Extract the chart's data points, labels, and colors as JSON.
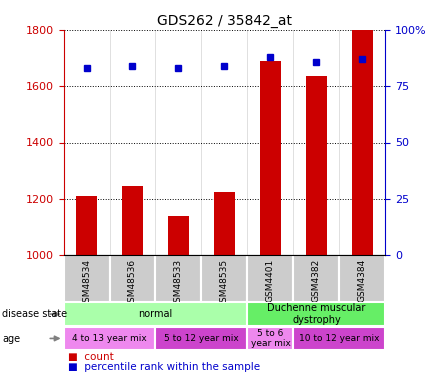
{
  "title": "GDS262 / 35842_at",
  "samples": [
    "GSM48534",
    "GSM48536",
    "GSM48533",
    "GSM48535",
    "GSM4401",
    "GSM4382",
    "GSM4384"
  ],
  "counts": [
    1210,
    1245,
    1140,
    1225,
    1690,
    1635,
    1800
  ],
  "percentiles": [
    83,
    84,
    83,
    84,
    88,
    86,
    87
  ],
  "ylim_left": [
    1000,
    1800
  ],
  "ylim_right": [
    0,
    100
  ],
  "yticks_left": [
    1000,
    1200,
    1400,
    1600,
    1800
  ],
  "yticks_right": [
    0,
    25,
    50,
    75,
    100
  ],
  "bar_color": "#cc0000",
  "dot_color": "#0000cc",
  "disease_state_groups": [
    {
      "label": "normal",
      "start": 0,
      "end": 4,
      "color": "#aaffaa"
    },
    {
      "label": "Duchenne muscular\ndystrophy",
      "start": 4,
      "end": 7,
      "color": "#66ee66"
    }
  ],
  "age_groups": [
    {
      "label": "4 to 13 year mix",
      "start": 0,
      "end": 2,
      "color": "#ee88ee"
    },
    {
      "label": "5 to 12 year mix",
      "start": 2,
      "end": 4,
      "color": "#cc44cc"
    },
    {
      "label": "5 to 6\nyear mix",
      "start": 4,
      "end": 5,
      "color": "#ee88ee"
    },
    {
      "label": "10 to 12 year mix",
      "start": 5,
      "end": 7,
      "color": "#cc44cc"
    }
  ],
  "left_label_color": "#cc0000",
  "right_label_color": "#0000cc",
  "legend_count_color": "#cc0000",
  "legend_pct_color": "#0000cc",
  "xticklabel_bg": "#cccccc",
  "bar_width": 0.45
}
